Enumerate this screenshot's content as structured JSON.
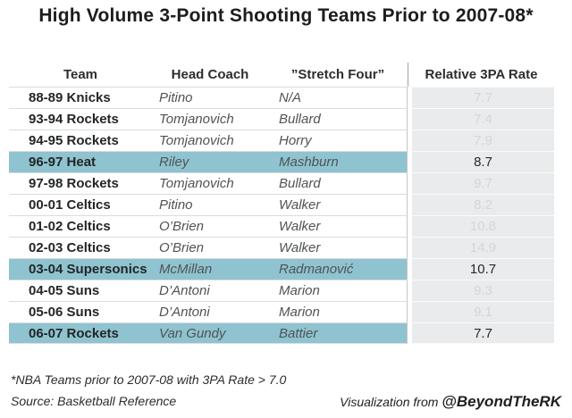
{
  "chart_data": {
    "type": "table",
    "title": "High Volume 3-Point Shooting Teams Prior to 2007-08*",
    "columns": [
      "Team",
      "Head Coach",
      "”Stretch Four”",
      "Relative 3PA Rate"
    ],
    "rows": [
      {
        "team": "88-89 Knicks",
        "coach": "Pitino",
        "stretch_four": "N/A",
        "rate": "7.7",
        "highlighted": false
      },
      {
        "team": "93-94 Rockets",
        "coach": "Tomjanovich",
        "stretch_four": "Bullard",
        "rate": "7.4",
        "highlighted": false
      },
      {
        "team": "94-95 Rockets",
        "coach": "Tomjanovich",
        "stretch_four": "Horry",
        "rate": "7.9",
        "highlighted": false
      },
      {
        "team": "96-97 Heat",
        "coach": "Riley",
        "stretch_four": "Mashburn",
        "rate": "8.7",
        "highlighted": true
      },
      {
        "team": "97-98 Rockets",
        "coach": "Tomjanovich",
        "stretch_four": "Bullard",
        "rate": "9.7",
        "highlighted": false
      },
      {
        "team": "00-01 Celtics",
        "coach": "Pitino",
        "stretch_four": "Walker",
        "rate": "8.2",
        "highlighted": false
      },
      {
        "team": "01-02 Celtics",
        "coach": "O’Brien",
        "stretch_four": "Walker",
        "rate": "10.8",
        "highlighted": false
      },
      {
        "team": "02-03 Celtics",
        "coach": "O’Brien",
        "stretch_four": "Walker",
        "rate": "14.9",
        "highlighted": false
      },
      {
        "team": "03-04 Supersonics",
        "coach": "McMillan",
        "stretch_four": "Radmanović",
        "rate": "10.7",
        "highlighted": true
      },
      {
        "team": "04-05 Suns",
        "coach": "D’Antoni",
        "stretch_four": "Marion",
        "rate": "9.3",
        "highlighted": false
      },
      {
        "team": "05-06 Suns",
        "coach": "D’Antoni",
        "stretch_four": "Marion",
        "rate": "9.1",
        "highlighted": false
      },
      {
        "team": "06-07 Rockets",
        "coach": "Van Gundy",
        "stretch_four": "Battier",
        "rate": "7.7",
        "highlighted": true
      }
    ]
  },
  "footnotes": {
    "note": "*NBA Teams prior to 2007-08 with 3PA Rate > 7.0",
    "source": "Source: Basketball Reference",
    "credit_prefix": "Visualization from ",
    "credit_handle": "@BeyondTheRK"
  },
  "colors": {
    "highlight": "#8fc3d0",
    "rate_column_bg": "#e9ebec",
    "rate_muted_text": "#d3d7d8",
    "dark_text": "#27292b"
  }
}
